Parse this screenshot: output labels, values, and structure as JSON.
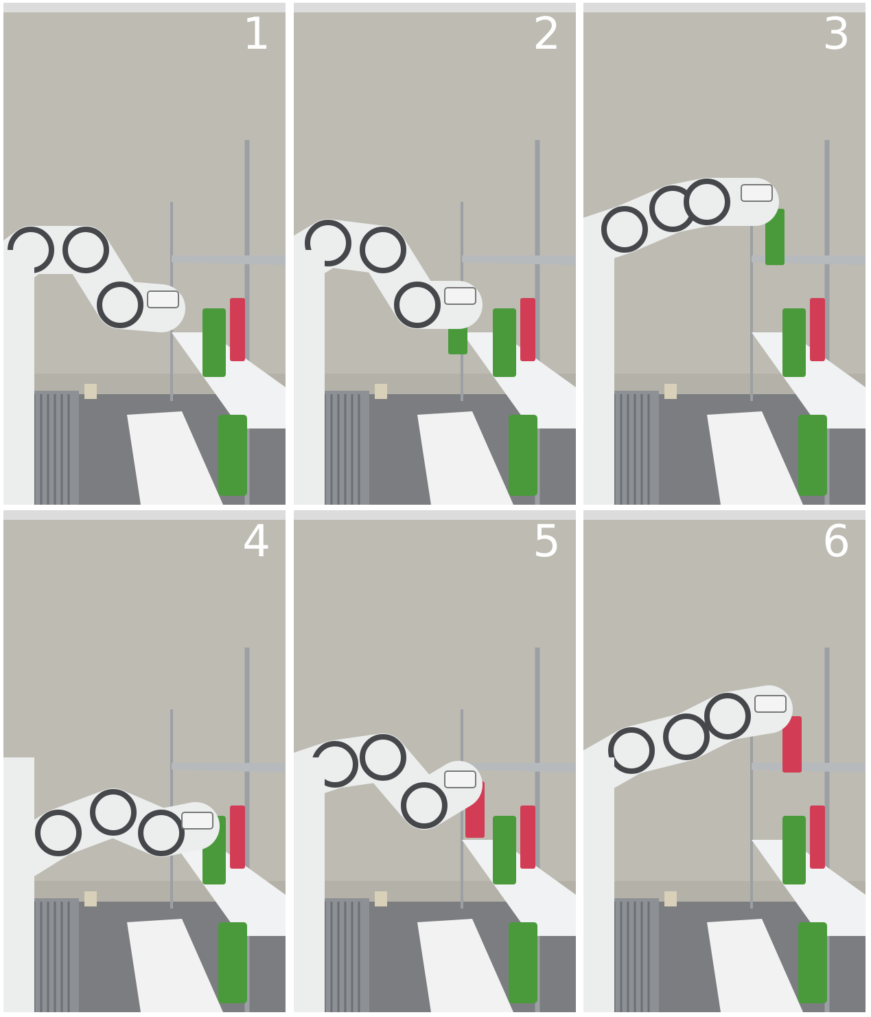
{
  "colors": {
    "wall": "#bdbbb2",
    "wall_lower": "#b4b2a8",
    "ceiling": "#dcdcdc",
    "floor": "#7b7d80",
    "robot_body": "#eceeee",
    "robot_dark": "#45474b",
    "shelf_metal": "#9c9fa3",
    "can_green": "#4a9a3c",
    "can_red": "#d23c54"
  },
  "frames": [
    {
      "number": "1",
      "description_icon": "robot-arm-reaching-lower-shelf"
    },
    {
      "number": "2",
      "description_icon": "robot-arm-grasping-green-can"
    },
    {
      "number": "3",
      "description_icon": "robot-arm-placing-can-upper-shelf"
    },
    {
      "number": "4",
      "description_icon": "robot-arm-reaching-lower-shelf"
    },
    {
      "number": "5",
      "description_icon": "robot-arm-grasping-red-can"
    },
    {
      "number": "6",
      "description_icon": "robot-arm-placing-can-upper-shelf"
    }
  ]
}
